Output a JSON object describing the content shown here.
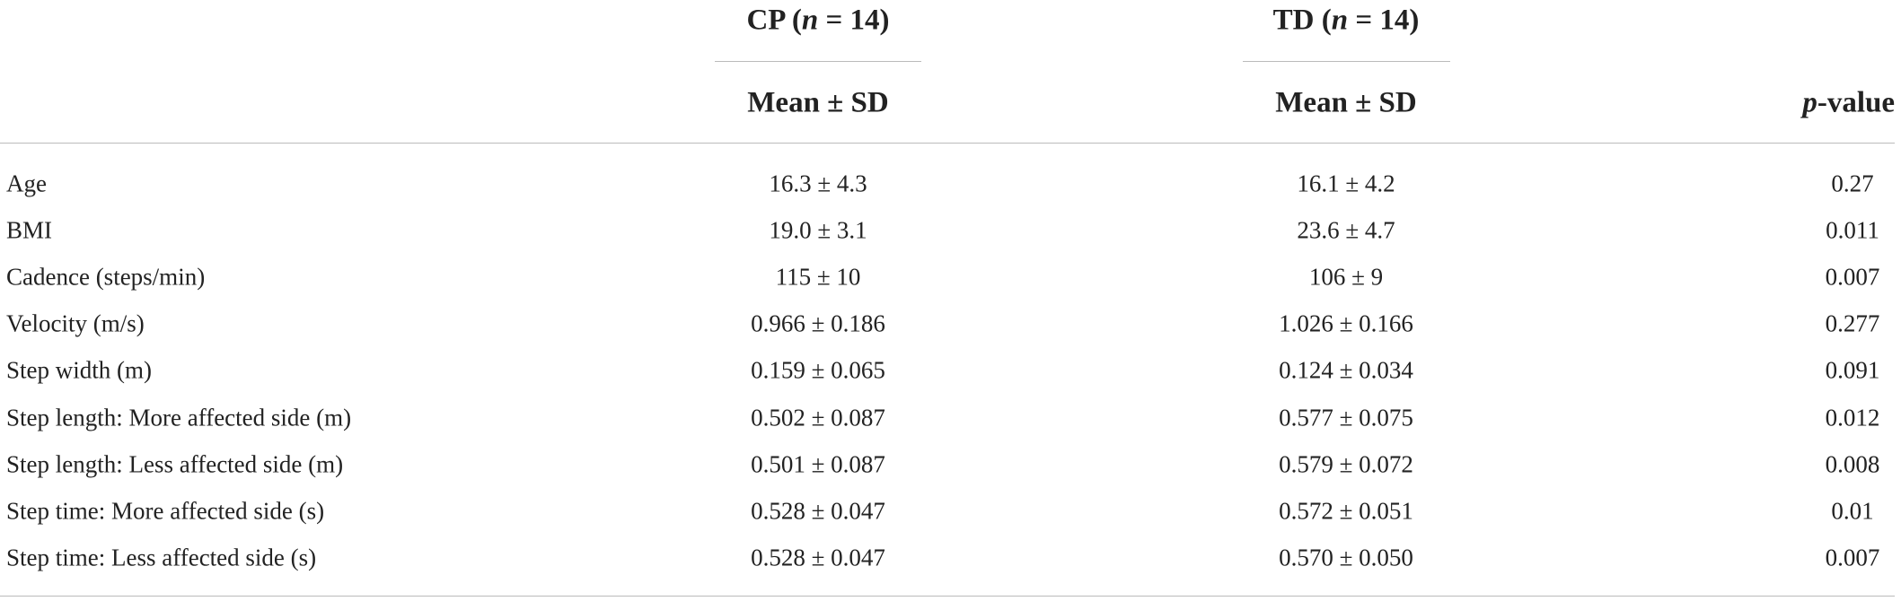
{
  "table": {
    "groups": [
      {
        "parts": [
          "CP (",
          "n",
          " = 14)"
        ]
      },
      {
        "parts": [
          "TD (",
          "n",
          " = 14)"
        ]
      }
    ],
    "subheaders": [
      "Mean ± SD",
      "Mean ± SD"
    ],
    "pvalue_header": [
      "p",
      "-value"
    ],
    "rows": [
      [
        "Age",
        "16.3 ± 4.3",
        "16.1 ± 4.2",
        "0.27"
      ],
      [
        "BMI",
        "19.0 ± 3.1",
        "23.6 ± 4.7",
        "0.011"
      ],
      [
        "Cadence (steps/min)",
        "115 ± 10",
        "106 ± 9",
        "0.007"
      ],
      [
        "Velocity (m/s)",
        "0.966 ± 0.186",
        "1.026 ± 0.166",
        "0.277"
      ],
      [
        "Step width (m)",
        "0.159 ± 0.065",
        "0.124 ± 0.034",
        "0.091"
      ],
      [
        "Step length: More affected side (m)",
        "0.502 ± 0.087",
        "0.577 ± 0.075",
        "0.012"
      ],
      [
        "Step length: Less affected side (m)",
        "0.501 ± 0.087",
        "0.579 ± 0.072",
        "0.008"
      ],
      [
        "Step time: More affected side (s)",
        "0.528 ± 0.047",
        "0.572 ± 0.051",
        "0.01"
      ],
      [
        "Step time: Less affected side (s)",
        "0.528 ± 0.047",
        "0.570 ± 0.050",
        "0.007"
      ]
    ]
  }
}
